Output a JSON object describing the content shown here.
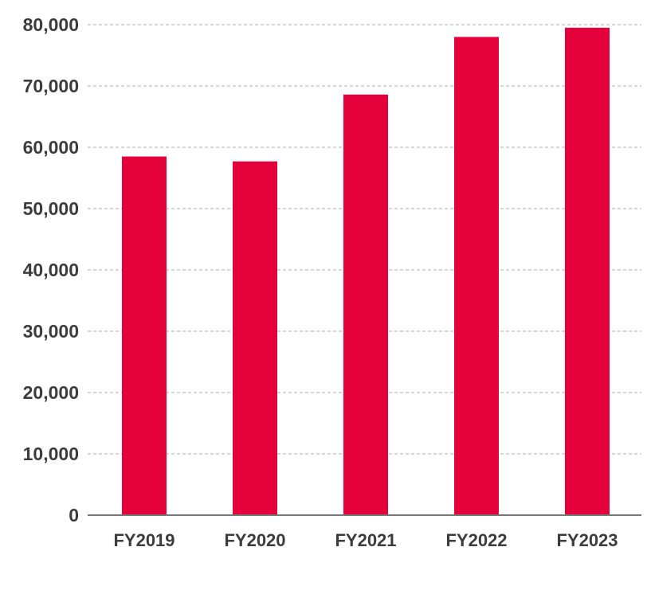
{
  "chart_data": {
    "type": "bar",
    "title": "",
    "xlabel": "",
    "ylabel": "",
    "categories": [
      "FY2019",
      "FY2020",
      "FY2021",
      "FY2022",
      "FY2023"
    ],
    "values": [
      58500,
      57700,
      68600,
      78000,
      79500
    ],
    "ylim": [
      0,
      80000
    ],
    "y_ticks": [
      "0",
      "10,000",
      "20,000",
      "30,000",
      "40,000",
      "50,000",
      "60,000",
      "70,000",
      "80,000"
    ],
    "y_tick_values": [
      0,
      10000,
      20000,
      30000,
      40000,
      50000,
      60000,
      70000,
      80000
    ],
    "grid": true,
    "legend": "none",
    "bar_color": "#e4003a"
  }
}
